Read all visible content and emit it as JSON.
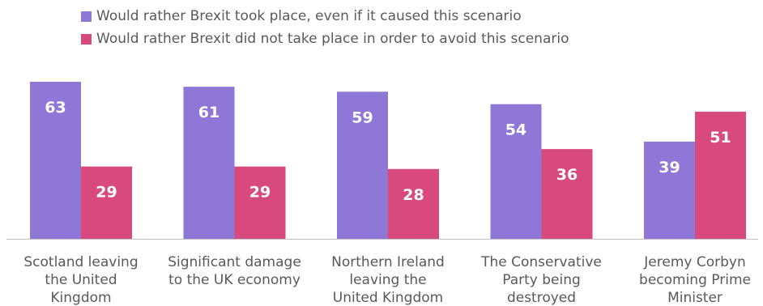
{
  "legend": [
    {
      "label": "Would rather Brexit took place, even if it caused this scenario",
      "color": "#8f77d8"
    },
    {
      "label": "Would rather Brexit did not take place in order to avoid this scenario",
      "color": "#d84a7e"
    }
  ],
  "chart_data": {
    "type": "bar",
    "title": "",
    "xlabel": "",
    "ylabel": "",
    "ylim": [
      0,
      63
    ],
    "grid": false,
    "legend_position": "top-left",
    "categories": [
      [
        "Scotland leaving",
        "the United",
        "Kingdom"
      ],
      [
        "Significant damage",
        "to the UK economy"
      ],
      [
        "Northern Ireland",
        "leaving the",
        "United Kingdom"
      ],
      [
        "The Conservative",
        "Party being",
        "destroyed"
      ],
      [
        "Jeremy Corbyn",
        "becoming Prime",
        "Minister"
      ]
    ],
    "series": [
      {
        "name": "Would rather Brexit took place, even if it caused this scenario",
        "color": "#8f77d8",
        "values": [
          63,
          61,
          59,
          54,
          39
        ]
      },
      {
        "name": "Would rather Brexit did not take place in order to avoid this scenario",
        "color": "#d84a7e",
        "values": [
          29,
          29,
          28,
          36,
          51
        ]
      }
    ]
  }
}
